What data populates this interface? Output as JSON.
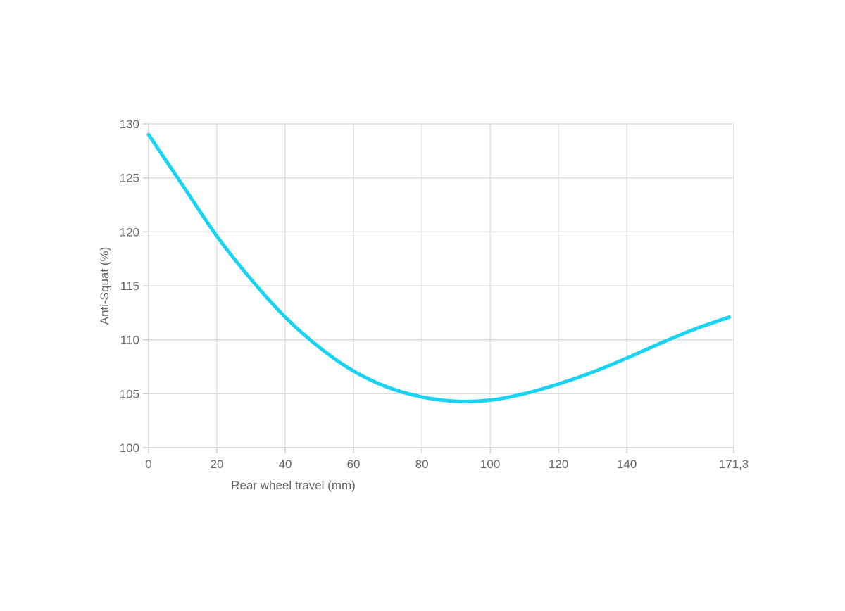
{
  "chart_data": {
    "type": "line",
    "title": "",
    "xlabel": "Rear wheel travel (mm)",
    "ylabel": "Anti-Squat (%)",
    "xlim": [
      0,
      171.3
    ],
    "ylim": [
      100,
      130
    ],
    "x_ticks": [
      0,
      20,
      40,
      60,
      80,
      100,
      120,
      140,
      171.3
    ],
    "x_tick_labels": [
      "0",
      "20",
      "40",
      "60",
      "80",
      "100",
      "120",
      "140",
      "171,3"
    ],
    "y_ticks": [
      100,
      105,
      110,
      115,
      120,
      125,
      130
    ],
    "y_tick_labels": [
      "100",
      "105",
      "110",
      "115",
      "120",
      "125",
      "130"
    ],
    "grid": true,
    "legend": "none",
    "series": [
      {
        "color": "#19d3f3",
        "x": [
          0,
          10,
          20,
          30,
          40,
          50,
          60,
          70,
          80,
          90,
          100,
          110,
          120,
          130,
          140,
          150,
          160,
          170
        ],
        "y": [
          129.0,
          124.3,
          119.6,
          115.6,
          112.1,
          109.3,
          107.1,
          105.6,
          104.7,
          104.3,
          104.4,
          105.0,
          105.9,
          107.0,
          108.3,
          109.7,
          111.0,
          112.1
        ]
      }
    ]
  }
}
